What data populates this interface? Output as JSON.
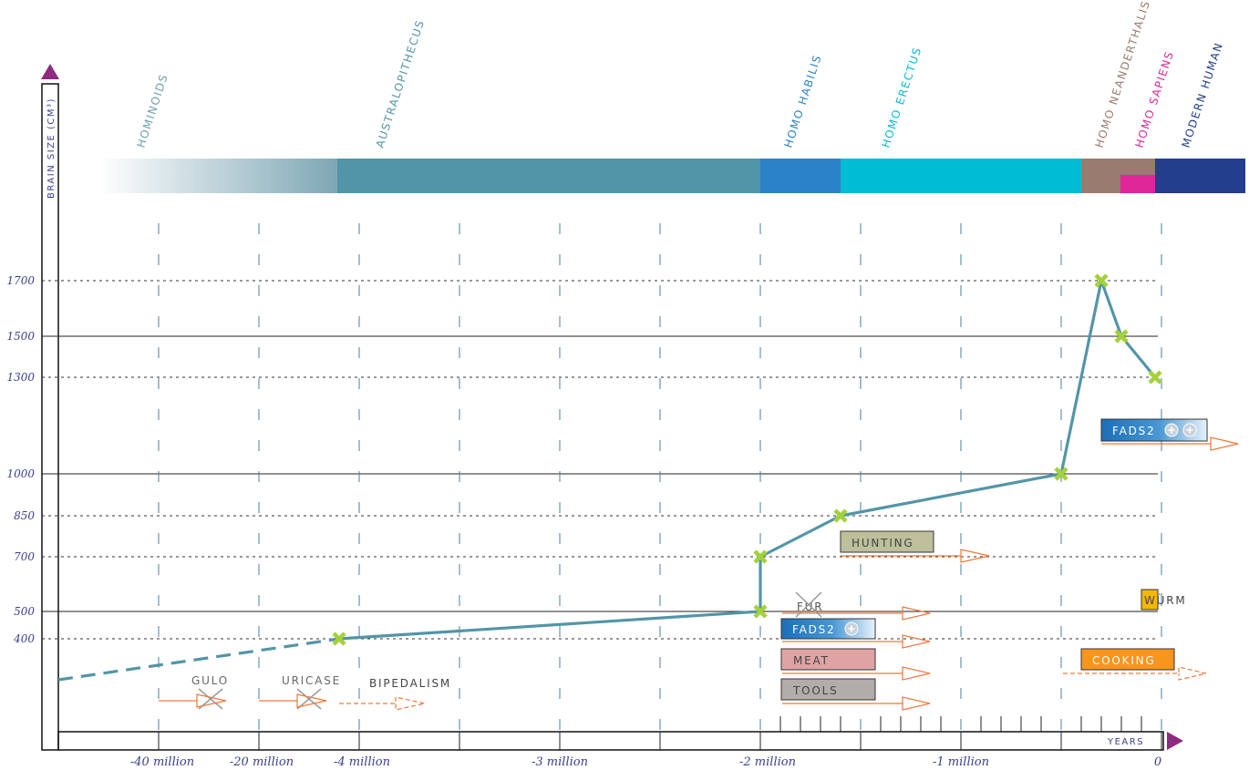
{
  "chart_data": {
    "type": "line",
    "ylabel": "BRAIN SIZE (CM³)",
    "xlabel": "YEARS",
    "x_tick_labels": [
      "-40  million",
      "-20  million",
      "-4  million",
      "-3 million",
      "-2 million",
      "-1 million",
      "0"
    ],
    "y_tick_labels": [
      "1700",
      "1500",
      "1300",
      "1000",
      "850",
      "700",
      "500",
      "400"
    ],
    "y_ticks": [
      1700,
      1500,
      1300,
      1000,
      850,
      700,
      500,
      400
    ],
    "species": [
      {
        "name": "HOMINOIDS",
        "color": "#6fa0b0"
      },
      {
        "name": "AUSTRALOPITHECUS",
        "color": "#5395a8"
      },
      {
        "name": "HOMO HABILIS",
        "color": "#2b82c9"
      },
      {
        "name": "HOMO ERECTUS",
        "color": "#00bcd5"
      },
      {
        "name": "HOMO NEANDERTHALIS",
        "color": "#9a7b6f"
      },
      {
        "name": "HOMO SAPIENS",
        "color": "#e0279a"
      },
      {
        "name": "MODERN HUMAN",
        "color": "#223e8c"
      }
    ],
    "series": [
      {
        "x": [
          "-4 million",
          "-2 million",
          "-2 million",
          "-1.8 million",
          "-0.3 million",
          "-0.2 million",
          "-0.1 million",
          "0"
        ],
        "values": [
          400,
          500,
          700,
          850,
          1000,
          1700,
          1500,
          1300
        ]
      }
    ],
    "events": [
      {
        "label": "GULO",
        "crossed": true
      },
      {
        "label": "URICASE",
        "crossed": true
      },
      {
        "label": "BIPEDALISM",
        "crossed": false
      },
      {
        "label": "FUR",
        "crossed": true
      },
      {
        "label": "FADS2",
        "plus": 1
      },
      {
        "label": "MEAT"
      },
      {
        "label": "TOOLS"
      },
      {
        "label": "HUNTING"
      },
      {
        "label": "FADS2",
        "plus": 2
      },
      {
        "label": "WÜRM"
      },
      {
        "label": "COOKING"
      }
    ],
    "colors": {
      "line": "#5395a8",
      "marker": "#a4d13a",
      "arrow": "#f0773a",
      "axis_arrow": "#8e2a82",
      "meat": "#e0a3a3",
      "tools": "#b3adaa",
      "hunting": "#bdc09a",
      "cooking": "#f7951d",
      "wurm": "#f4b800"
    }
  }
}
